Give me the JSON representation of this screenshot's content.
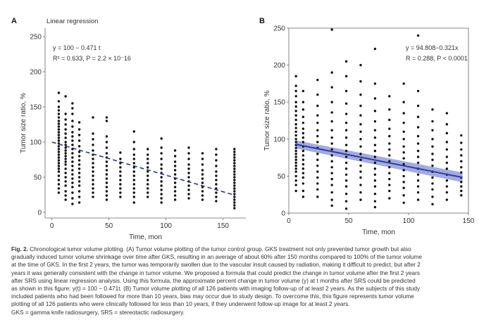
{
  "chart_data": [
    {
      "panel": "A",
      "type": "scatter",
      "title": "Linear regression",
      "xlabel": "Time, mon",
      "ylabel": "Tumor size ratio, %",
      "xlim": [
        -6,
        170
      ],
      "ylim": [
        -8,
        262
      ],
      "xticks": [
        0,
        50,
        100,
        150
      ],
      "yticks": [
        0,
        50,
        100,
        150,
        200,
        250
      ],
      "annotation_lines": [
        "y = 100 − 0.471 t",
        "R² = 0.633, P = 2.2 × 10⁻16"
      ],
      "regression": {
        "intercept": 100,
        "slope": -0.471,
        "x_range": [
          0,
          160
        ],
        "style": "dashed"
      },
      "series": [
        {
          "x_groups": [
            {
              "x": 6,
              "y": [
                170,
                158,
                150,
                145,
                140,
                135,
                130,
                126,
                122,
                118,
                114,
                110,
                106,
                102,
                98,
                94,
                90,
                86,
                82,
                78,
                74,
                70,
                66,
                62,
                58,
                52,
                46,
                40,
                34,
                28
              ]
            },
            {
              "x": 12,
              "y": [
                165,
                140,
                132,
                125,
                118,
                112,
                106,
                100,
                96,
                92,
                88,
                84,
                80,
                76,
                72,
                68,
                62,
                56,
                50,
                44,
                38,
                30,
                24,
                18
              ]
            },
            {
              "x": 18,
              "y": [
                155,
                148,
                140,
                130,
                122,
                114,
                108,
                102,
                96,
                90,
                84,
                78,
                72,
                66,
                60,
                54,
                48,
                42,
                36,
                28,
                20,
                12
              ]
            },
            {
              "x": 24,
              "y": [
                128,
                118,
                110,
                102,
                94,
                86,
                80,
                74,
                68,
                62,
                56,
                50,
                44,
                38,
                30,
                22,
                14
              ]
            },
            {
              "x": 36,
              "y": [
                135,
                112,
                104,
                96,
                88,
                82,
                76,
                70,
                64,
                58,
                52,
                46,
                40,
                34,
                28,
                22
              ]
            },
            {
              "x": 48,
              "y": [
                135,
                130,
                108,
                100,
                92,
                84,
                78,
                72,
                66,
                60,
                54,
                48,
                42,
                36,
                30,
                24,
                18
              ]
            },
            {
              "x": 60,
              "y": [
                85,
                76,
                70,
                64,
                58,
                52,
                46,
                40,
                34,
                28,
                22
              ]
            },
            {
              "x": 72,
              "y": [
                115,
                100,
                90,
                82,
                76,
                70,
                64,
                58,
                52,
                46,
                40,
                34,
                28,
                22,
                14
              ]
            },
            {
              "x": 84,
              "y": [
                90,
                82,
                76,
                70,
                64,
                58,
                52,
                46,
                40,
                34,
                28,
                22
              ]
            },
            {
              "x": 96,
              "y": [
                105,
                92,
                84,
                76,
                68,
                62,
                56,
                50,
                44,
                38,
                32,
                26,
                20,
                14
              ]
            },
            {
              "x": 108,
              "y": [
                88,
                80,
                72,
                66,
                60,
                54,
                48,
                42,
                36,
                30,
                24,
                18
              ]
            },
            {
              "x": 120,
              "y": [
                92,
                84,
                76,
                68,
                62,
                56,
                50,
                44,
                38,
                32,
                26,
                20
              ]
            },
            {
              "x": 132,
              "y": [
                84,
                76,
                68,
                60,
                54,
                48,
                42,
                36,
                30,
                24,
                18
              ]
            },
            {
              "x": 144,
              "y": [
                90,
                82,
                74,
                66,
                58,
                52,
                46,
                40,
                34,
                28,
                22,
                16
              ]
            },
            {
              "x": 160,
              "y": [
                90,
                86,
                82,
                78,
                74,
                70,
                66,
                62,
                58,
                54,
                50,
                46,
                42,
                38,
                34,
                30,
                26,
                22,
                18,
                14,
                10,
                6
              ]
            }
          ]
        }
      ]
    },
    {
      "panel": "B",
      "type": "scatter",
      "title": "",
      "xlabel": "Time, mon",
      "ylabel": "Tumor size ratio, %",
      "xlim": [
        0,
        150
      ],
      "ylim": [
        0,
        250
      ],
      "xticks": [
        0,
        50,
        100,
        150
      ],
      "yticks": [
        0,
        50,
        100,
        150,
        200,
        250
      ],
      "annotation_lines": [
        "y = 94.808−0.321x",
        "R = 0.288, P < 0.0001"
      ],
      "regression": {
        "intercept": 94.808,
        "slope": -0.321,
        "x_range": [
          6,
          145
        ],
        "ci_band": 6,
        "style": "solid"
      },
      "series": [
        {
          "x_groups": [
            {
              "x": 6,
              "y": [
                185,
                172,
                165,
                158,
                150,
                144,
                138,
                132,
                126,
                120,
                115,
                110,
                105,
                100,
                96,
                92,
                88,
                84,
                80,
                76,
                72,
                68,
                64,
                60,
                56,
                50,
                44,
                38,
                30
              ]
            },
            {
              "x": 12,
              "y": [
                165,
                150,
                140,
                130,
                122,
                114,
                108,
                102,
                96,
                90,
                84,
                78,
                72,
                66,
                60,
                54,
                48,
                40,
                30,
                22
              ]
            },
            {
              "x": 24,
              "y": [
                180,
                160,
                145,
                132,
                122,
                112,
                104,
                96,
                88,
                80,
                72,
                64,
                56,
                48,
                40,
                32,
                22
              ]
            },
            {
              "x": 36,
              "y": [
                248,
                190,
                170,
                150,
                136,
                124,
                112,
                102,
                94,
                86,
                78,
                70,
                62,
                54,
                46,
                38,
                28,
                18,
                10
              ]
            },
            {
              "x": 48,
              "y": [
                205,
                185,
                165,
                148,
                134,
                122,
                112,
                102,
                92,
                84,
                76,
                68,
                60,
                52,
                44,
                36,
                26,
                16,
                6
              ]
            },
            {
              "x": 60,
              "y": [
                200,
                178,
                160,
                145,
                132,
                120,
                110,
                100,
                90,
                80,
                72,
                64,
                56,
                48,
                38,
                28,
                18
              ]
            },
            {
              "x": 72,
              "y": [
                222,
                175,
                155,
                138,
                124,
                112,
                102,
                92,
                84,
                76,
                68,
                60,
                52,
                44,
                36,
                26,
                16,
                8
              ]
            },
            {
              "x": 84,
              "y": [
                158,
                140,
                126,
                114,
                104,
                94,
                86,
                78,
                70,
                62,
                54,
                46,
                38,
                30,
                20
              ]
            },
            {
              "x": 96,
              "y": [
                175,
                150,
                135,
                122,
                110,
                100,
                90,
                82,
                74,
                66,
                58,
                50,
                42,
                34,
                24,
                14
              ]
            },
            {
              "x": 108,
              "y": [
                240,
                165,
                145,
                130,
                116,
                104,
                94,
                84,
                76,
                68,
                60,
                52,
                44,
                36,
                28,
                18
              ]
            },
            {
              "x": 120,
              "y": [
                140,
                124,
                112,
                100,
                90,
                80,
                72,
                64,
                56,
                48,
                40,
                32,
                22,
                12
              ]
            },
            {
              "x": 132,
              "y": [
                135,
                120,
                108,
                96,
                86,
                76,
                68,
                60,
                52,
                44,
                36,
                28,
                18
              ]
            },
            {
              "x": 144,
              "y": [
                105,
                95,
                86,
                78,
                70,
                62,
                55,
                48,
                42,
                36,
                30,
                24
              ]
            }
          ]
        }
      ]
    }
  ],
  "caption": {
    "fig_label": "Fig. 2.",
    "lines": [
      "Chronological tumor volume plotting. (A) Tumor volume plotting of the tumor control group. GKS treatment not only prevented tumor growth but also",
      "gradually induced tumor volume shrinkage over time after GKS, resulting in an average of about 60% after 150 months compared to 100% of the tumor volume",
      "at the time of GKS. In the first 2 years, the tumor was temporarily swollen due to the vascular insult caused by radiation, making it difficult to predict, but after 2",
      "years it was generally consistent with the change in tumor volume. We proposed a formula that could predict the change in tumor volume after the first 2 years",
      "after SRS using linear regression analysis. Using this formula, the approximate percent change in tumor volume (y) at t months after SRS could be predicted",
      "as shown in this figure: y(t) = 100 − 0.471t. (B) Tumor volume plotting of all 126 patients with imaging follow-up of at least 2 years. As the subjects of this study",
      "included patients who had been followed for more than 10 years, bias may occur due to study design. To overcome this, this figure represents tumor volume",
      "plotting of all 126 patients who were clinically followed for less than 10 years, if they underwent follow-up image for at least 2 years.",
      "GKS = gamma knife radiosurgery, SRS = stereotactic radiosurgery."
    ]
  },
  "colors": {
    "dot": "#111111",
    "axis": "#666666",
    "text": "#333333",
    "regA": "#2b3d6e",
    "regB": "#2f3f96",
    "bandB": "#5a66c8"
  }
}
